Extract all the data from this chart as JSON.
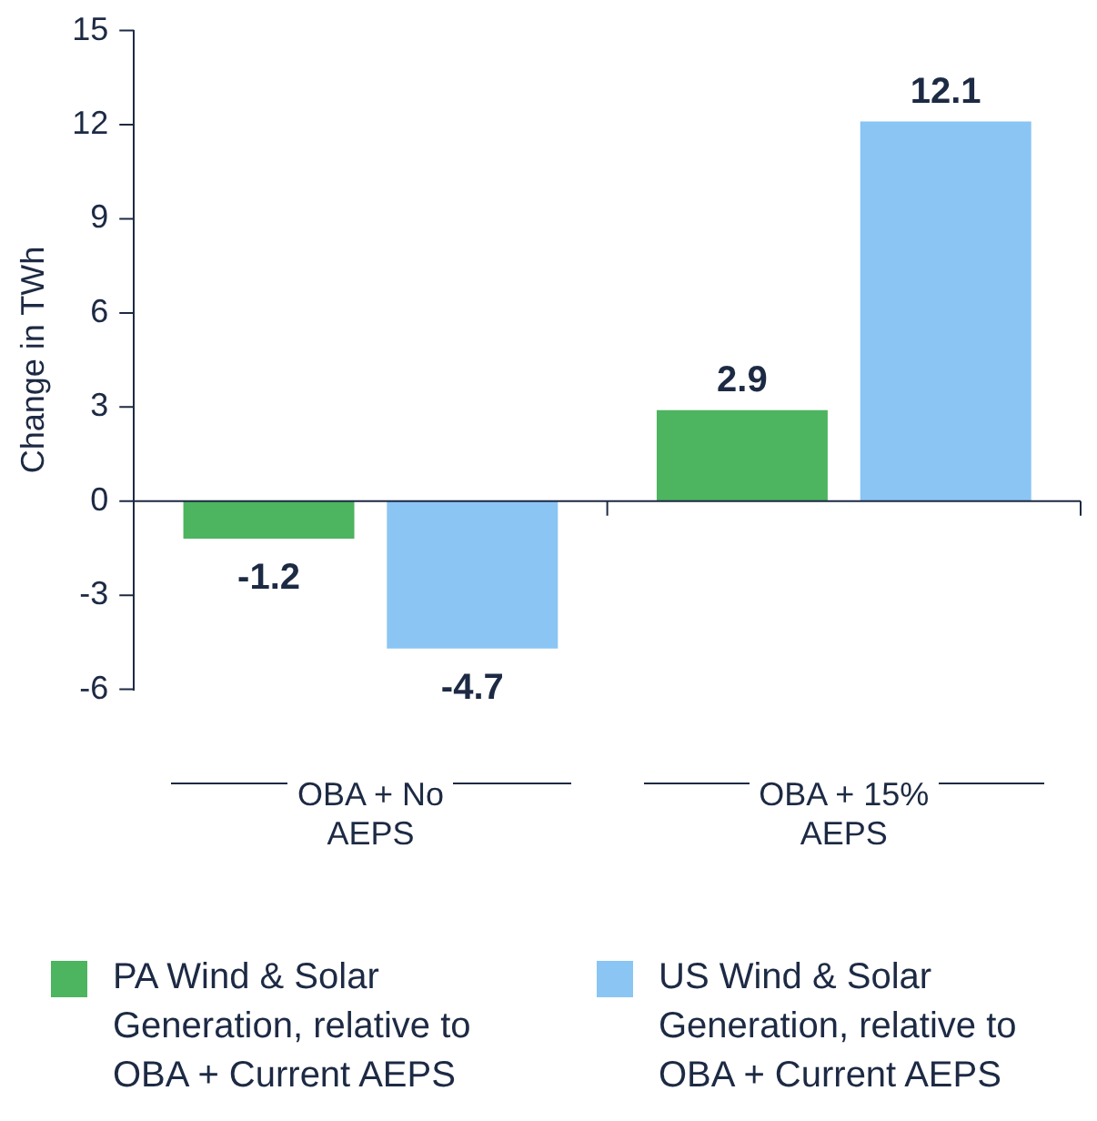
{
  "chart_data": {
    "type": "bar",
    "categories": [
      "OBA + No AEPS",
      "OBA + 15% AEPS"
    ],
    "series": [
      {
        "name": "PA Wind & Solar Generation, relative to OBA + Current AEPS",
        "color": "#4db45f",
        "values": [
          -1.2,
          2.9
        ]
      },
      {
        "name": "US Wind & Solar Generation, relative to OBA + Current AEPS",
        "color": "#8ac5f4",
        "values": [
          -4.7,
          12.1
        ]
      }
    ],
    "ylabel": "Change in TWh",
    "ylim": [
      -6,
      15
    ],
    "yticks": [
      -6,
      -3,
      0,
      3,
      6,
      9,
      12,
      15
    ],
    "legend": "bottom",
    "data_labels": true
  }
}
